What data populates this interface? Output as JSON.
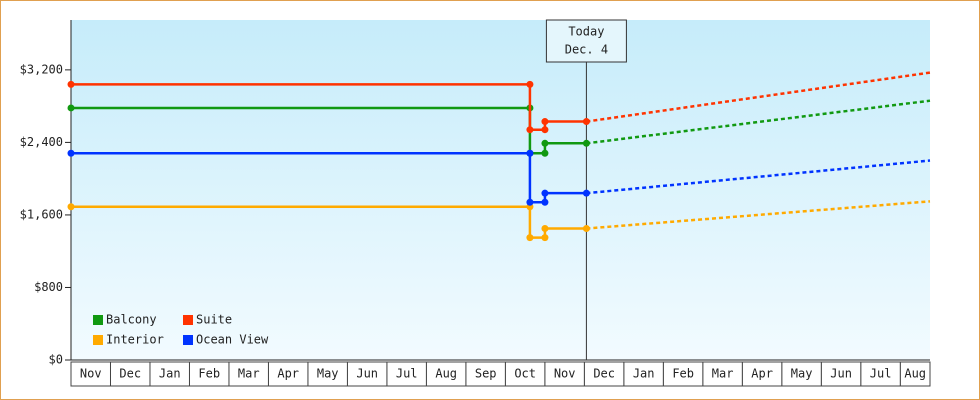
{
  "chart_data": {
    "type": "step-line",
    "categories": [
      "Nov",
      "Dec",
      "Jan",
      "Feb",
      "Mar",
      "Apr",
      "May",
      "Jun",
      "Jul",
      "Aug",
      "Sep",
      "Oct",
      "Nov",
      "Dec",
      "Jan",
      "Feb",
      "Mar",
      "Apr",
      "May",
      "Jun",
      "Jul",
      "Aug"
    ],
    "x": [
      0,
      11.62,
      11.62,
      12.0,
      12.0,
      13.05
    ],
    "forecast_x": [
      13.05,
      21.75
    ],
    "xlim": [
      0,
      21.75
    ],
    "ylim": [
      0,
      3750
    ],
    "yticks": [
      {
        "value": 0,
        "label": "$0"
      },
      {
        "value": 800,
        "label": "$800"
      },
      {
        "value": 1600,
        "label": "$1,600"
      },
      {
        "value": 2400,
        "label": "$2,400"
      },
      {
        "value": 3200,
        "label": "$3,200"
      }
    ],
    "today": {
      "label": [
        "Today",
        "Dec. 4"
      ],
      "x": 13.05
    },
    "series": [
      {
        "name": "Balcony",
        "color": "#119911",
        "values": [
          2780,
          2780,
          2280,
          2280,
          2390,
          2390
        ],
        "forecast": [
          2390,
          2860
        ]
      },
      {
        "name": "Suite",
        "color": "#ff3300",
        "values": [
          3040,
          3040,
          2540,
          2540,
          2630,
          2630
        ],
        "forecast": [
          2630,
          3170
        ]
      },
      {
        "name": "Interior",
        "color": "#ffaa00",
        "values": [
          1690,
          1690,
          1350,
          1350,
          1450,
          1450
        ],
        "forecast": [
          1450,
          1750
        ]
      },
      {
        "name": "Ocean View",
        "color": "#0033ff",
        "values": [
          2280,
          2280,
          1740,
          1740,
          1840,
          1840
        ],
        "forecast": [
          1840,
          2200
        ]
      }
    ],
    "legend": "lower-left"
  }
}
